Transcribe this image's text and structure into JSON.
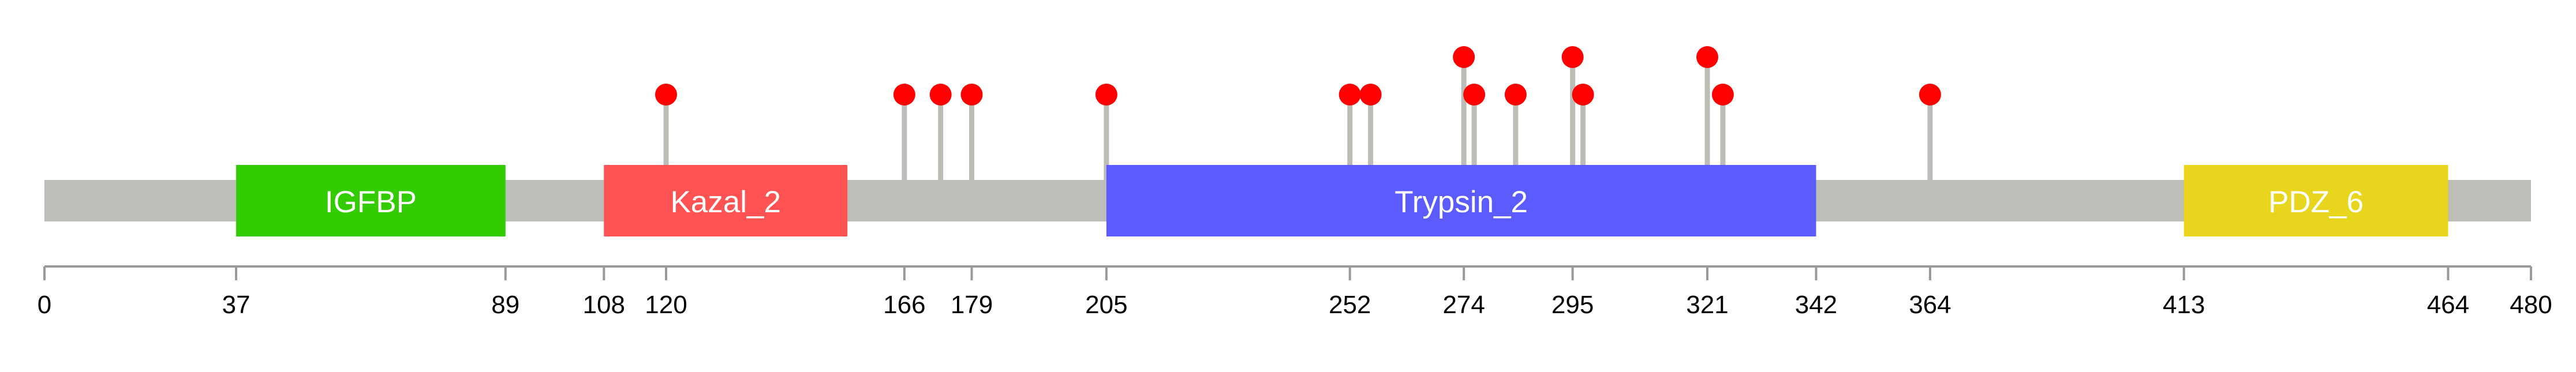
{
  "chart_data": {
    "type": "lollipop",
    "protein_length": 480,
    "xlim": [
      0,
      480
    ],
    "domains": [
      {
        "name": "IGFBP",
        "start": 37,
        "end": 89,
        "color": "#33cc00"
      },
      {
        "name": "Kazal_2",
        "start": 108,
        "end": 155,
        "color": "#ff5353"
      },
      {
        "name": "Trypsin_2",
        "start": 205,
        "end": 342,
        "color": "#5b5bff"
      },
      {
        "name": "PDZ_6",
        "start": 413,
        "end": 464,
        "color": "#e8d51e"
      }
    ],
    "mutations": [
      {
        "position": 120,
        "level": 1
      },
      {
        "position": 166,
        "level": 1
      },
      {
        "position": 173,
        "level": 1
      },
      {
        "position": 179,
        "level": 1
      },
      {
        "position": 205,
        "level": 1
      },
      {
        "position": 252,
        "level": 1
      },
      {
        "position": 256,
        "level": 1
      },
      {
        "position": 274,
        "level": 2
      },
      {
        "position": 276,
        "level": 1
      },
      {
        "position": 284,
        "level": 1
      },
      {
        "position": 295,
        "level": 2
      },
      {
        "position": 297,
        "level": 1
      },
      {
        "position": 321,
        "level": 2
      },
      {
        "position": 324,
        "level": 1
      },
      {
        "position": 364,
        "level": 1
      }
    ],
    "ticks": [
      "0",
      "37",
      "89",
      "108",
      "120",
      "166",
      "179",
      "205",
      "252",
      "274",
      "295",
      "321",
      "342",
      "364",
      "413",
      "464",
      "480"
    ],
    "backbone_color": "#bebeb9",
    "stem_color": "#bdbdb8",
    "mutation_color": "#ff0000",
    "axis_color": "#999999"
  }
}
